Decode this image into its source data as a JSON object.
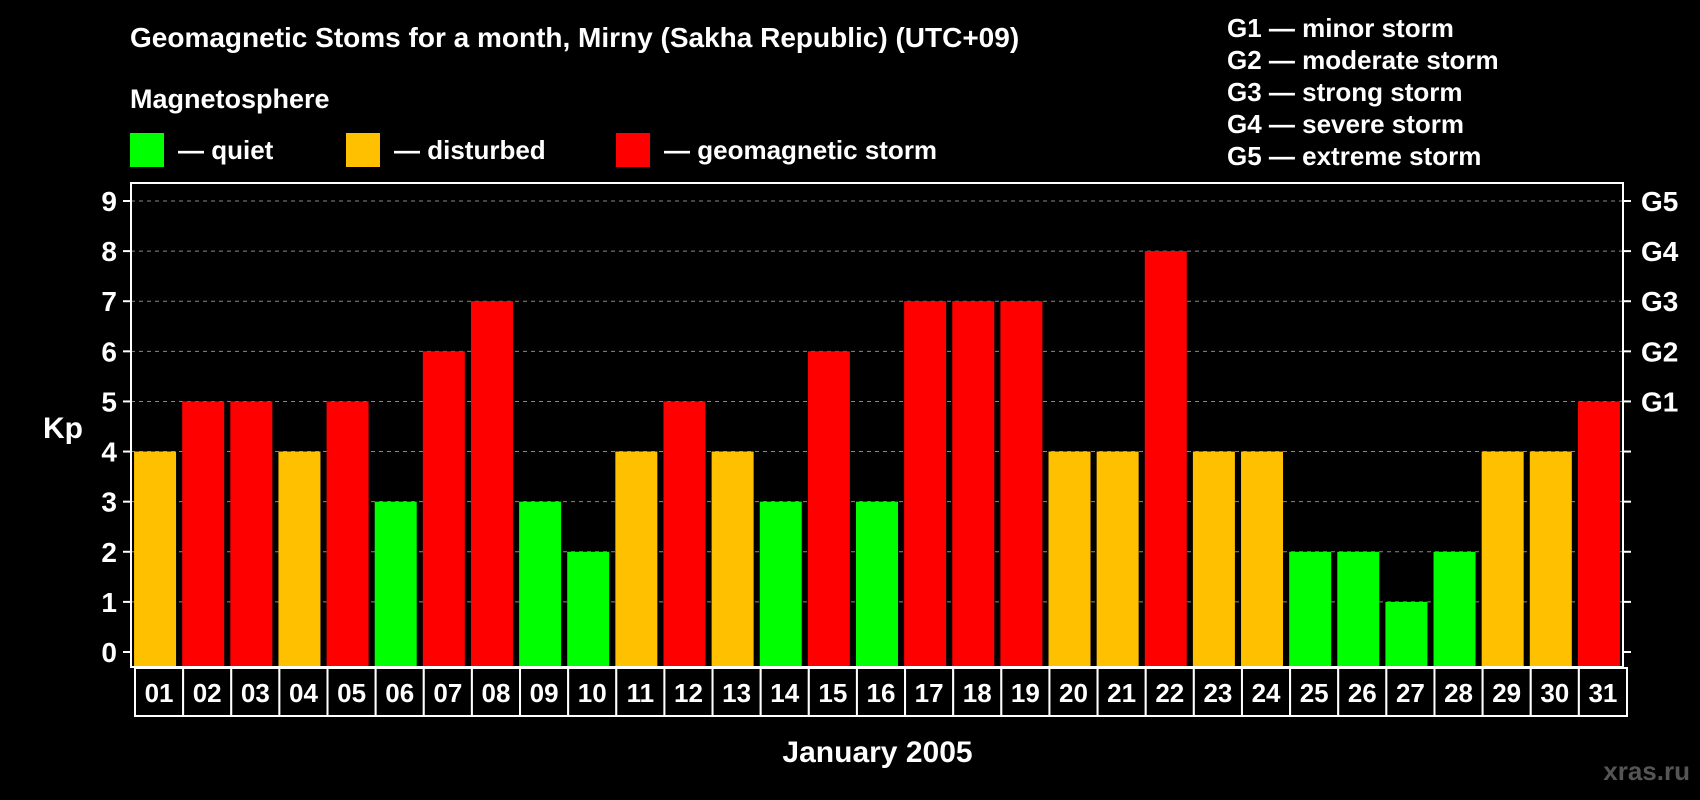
{
  "title": "Geomagnetic Stoms for a month, Mirny (Sakha Republic) (UTC+09)",
  "subtitle": "Magnetosphere",
  "legend": [
    {
      "label": "— quiet",
      "color": "#00ff00"
    },
    {
      "label": "— disturbed",
      "color": "#ffc000"
    },
    {
      "label": "— geomagnetic storm",
      "color": "#ff0000"
    }
  ],
  "g_legend": [
    "G1 — minor storm",
    "G2 — moderate storm",
    "G3 — strong storm",
    "G4 — severe storm",
    "G5 — extreme storm"
  ],
  "watermark": "xras.ru",
  "chart_data": {
    "type": "bar",
    "title": "Geomagnetic Stoms for a month, Mirny (Sakha Republic) (UTC+09)",
    "xlabel": "January 2005",
    "ylabel": "Kp",
    "ylim": [
      0,
      9
    ],
    "yticks": [
      0,
      1,
      2,
      3,
      4,
      5,
      6,
      7,
      8,
      9
    ],
    "right_ticks": [
      {
        "value": 5,
        "label": "G1"
      },
      {
        "value": 6,
        "label": "G2"
      },
      {
        "value": 7,
        "label": "G3"
      },
      {
        "value": 8,
        "label": "G4"
      },
      {
        "value": 9,
        "label": "G5"
      }
    ],
    "categories": [
      "01",
      "02",
      "03",
      "04",
      "05",
      "06",
      "07",
      "08",
      "09",
      "10",
      "11",
      "12",
      "13",
      "14",
      "15",
      "16",
      "17",
      "18",
      "19",
      "20",
      "21",
      "22",
      "23",
      "24",
      "25",
      "26",
      "27",
      "28",
      "29",
      "30",
      "31"
    ],
    "values": [
      4,
      5,
      5,
      4,
      5,
      3,
      6,
      7,
      3,
      2,
      4,
      5,
      4,
      3,
      6,
      3,
      7,
      7,
      7,
      4,
      4,
      8,
      4,
      4,
      2,
      2,
      1,
      2,
      4,
      4,
      5
    ],
    "colors": {
      "quiet": "#00ff00",
      "disturbed": "#ffc000",
      "storm": "#ff0000"
    },
    "grid": true
  }
}
